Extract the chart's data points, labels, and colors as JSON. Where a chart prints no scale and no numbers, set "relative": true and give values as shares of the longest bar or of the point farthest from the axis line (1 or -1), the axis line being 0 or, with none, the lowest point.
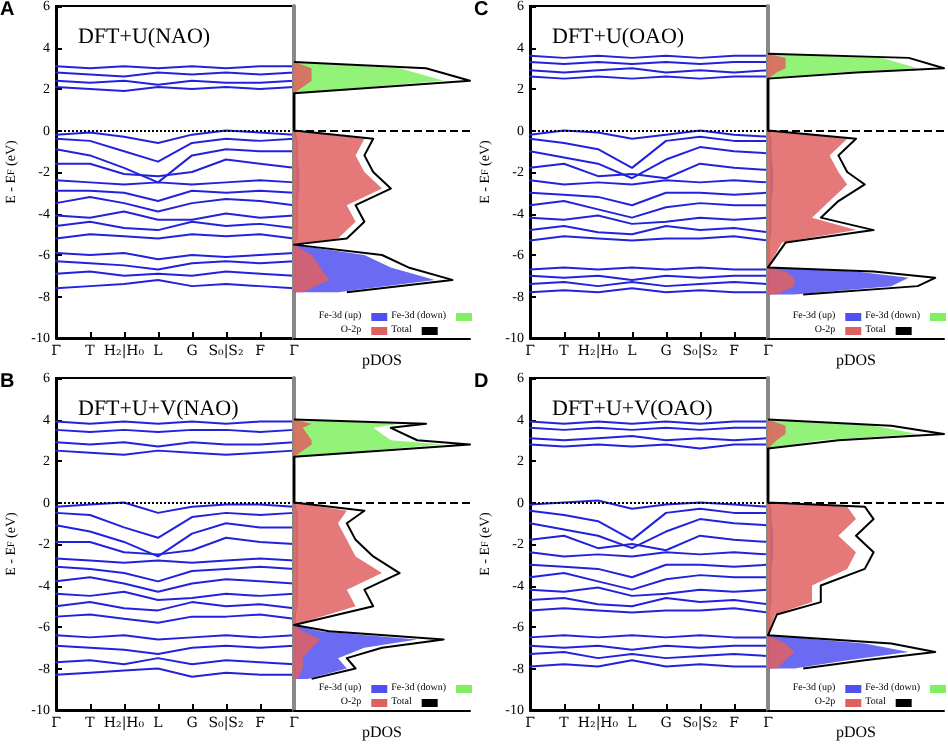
{
  "chart_data": [
    {
      "type": "line",
      "title": "DFT+U(NAO)",
      "ylabel": "E - E$_{F}$ (eV)",
      "annotations": [
        "A"
      ],
      "marker": "none",
      "line_style": "solid",
      "categories": [
        "Γ",
        "T",
        "H₂|H₀",
        "L",
        "G",
        "S₀|S₂",
        "F",
        "Γ"
      ],
      "ylim": [
        -10,
        6
      ],
      "yticks": [
        -10,
        -8,
        -6,
        -4,
        -2,
        0,
        2,
        4,
        6
      ],
      "ref_lines": [
        {
          "axis": "y",
          "value": 0,
          "line_style": "dotted",
          "color": "#000000"
        }
      ],
      "series": [
        {
          "color": "#2222dd",
          "values": [
            3.1,
            3.0,
            3.1,
            3.0,
            3.1,
            3.0,
            3.1,
            3.1
          ]
        },
        {
          "color": "#2222dd",
          "values": [
            2.8,
            2.7,
            2.6,
            2.8,
            2.7,
            2.8,
            2.7,
            2.8
          ]
        },
        {
          "color": "#2222dd",
          "values": [
            2.4,
            2.3,
            2.4,
            2.2,
            2.4,
            2.3,
            2.3,
            2.4
          ]
        },
        {
          "color": "#2222dd",
          "values": [
            2.1,
            2.0,
            1.9,
            2.1,
            2.0,
            2.1,
            2.0,
            2.1
          ]
        },
        {
          "color": "#2222dd",
          "values": [
            -0.2,
            -0.1,
            -0.3,
            -0.6,
            -0.2,
            0,
            -0.1,
            -0.2
          ]
        },
        {
          "color": "#2222dd",
          "values": [
            -0.4,
            -0.5,
            -1.0,
            -1.5,
            -0.6,
            -0.4,
            -0.5,
            -0.4
          ]
        },
        {
          "color": "#2222dd",
          "values": [
            -0.9,
            -1.2,
            -1.8,
            -2.5,
            -1.2,
            -0.9,
            -1.0,
            -1.0
          ]
        },
        {
          "color": "#2222dd",
          "values": [
            -1.6,
            -1.6,
            -2.1,
            -2.2,
            -2.0,
            -1.4,
            -1.6,
            -1.8
          ]
        },
        {
          "color": "#2222dd",
          "values": [
            -2.4,
            -2.5,
            -2.6,
            -2.5,
            -2.6,
            -2.5,
            -2.4,
            -2.5
          ]
        },
        {
          "color": "#2222dd",
          "values": [
            -2.9,
            -2.9,
            -3.0,
            -3.4,
            -2.9,
            -3.0,
            -2.9,
            -3.0
          ]
        },
        {
          "color": "#2222dd",
          "values": [
            -3.5,
            -3.2,
            -3.5,
            -3.9,
            -3.5,
            -3.3,
            -3.4,
            -3.6
          ]
        },
        {
          "color": "#2222dd",
          "values": [
            -4.1,
            -4.2,
            -3.9,
            -4.3,
            -4.3,
            -4.0,
            -4.2,
            -4.1
          ]
        },
        {
          "color": "#2222dd",
          "values": [
            -4.6,
            -4.4,
            -4.7,
            -4.8,
            -4.4,
            -4.6,
            -4.5,
            -4.7
          ]
        },
        {
          "color": "#2222dd",
          "values": [
            -5.2,
            -5.0,
            -5.1,
            -5.2,
            -5.0,
            -5.1,
            -5.0,
            -5.2
          ]
        },
        {
          "color": "#2222dd",
          "values": [
            -5.9,
            -6.0,
            -5.9,
            -6.2,
            -6.0,
            -6.1,
            -6.0,
            -5.9
          ]
        },
        {
          "color": "#2222dd",
          "values": [
            -6.3,
            -6.4,
            -6.5,
            -6.7,
            -6.4,
            -6.3,
            -6.4,
            -6.3
          ]
        },
        {
          "color": "#2222dd",
          "values": [
            -6.9,
            -6.8,
            -7.0,
            -6.9,
            -7.0,
            -6.8,
            -6.9,
            -7.0
          ]
        },
        {
          "color": "#2222dd",
          "values": [
            -7.6,
            -7.5,
            -7.4,
            -7.2,
            -7.5,
            -7.4,
            -7.5,
            -7.6
          ]
        }
      ]
    },
    {
      "type": "area",
      "orientation": "horizontal",
      "relative": true,
      "xlabel": "pDOS",
      "tick_labels": false,
      "legend": "bottom right",
      "ylim": [
        -10,
        6
      ],
      "x": [
        -7.8,
        -7.2,
        -6.6,
        -6.0,
        -5.5,
        -5.2,
        -4.4,
        -3.6,
        -2.8,
        -2.0,
        -1.2,
        -0.4,
        0,
        1.8,
        2.4,
        3.0,
        3.3
      ],
      "ref_lines": [
        {
          "axis": "y",
          "value": 0,
          "line_style": "dashed",
          "color": "#000000"
        }
      ],
      "series": [
        {
          "name": "Fe-3d (up)",
          "color": "#5050f0",
          "values": [
            0.25,
            0.8,
            0.55,
            0.4,
            0,
            0.02,
            0.02,
            0.02,
            0.03,
            0.03,
            0.02,
            0.02,
            0,
            0,
            0,
            0,
            0
          ]
        },
        {
          "name": "Fe-3d (down)",
          "color": "#80f060",
          "values": [
            0,
            0,
            0,
            0,
            0,
            0.01,
            0.01,
            0.01,
            0.01,
            0.01,
            0.01,
            0.01,
            0,
            0,
            0.85,
            0.6,
            0
          ]
        },
        {
          "name": "O-2p",
          "color": "#e06060",
          "values": [
            0.05,
            0.2,
            0.15,
            0.1,
            0,
            0.25,
            0.35,
            0.3,
            0.5,
            0.4,
            0.35,
            0.4,
            0,
            0,
            0.1,
            0.1,
            0
          ]
        },
        {
          "name": "Total",
          "type": "line",
          "color": "#000000",
          "values": [
            0.3,
            0.9,
            0.65,
            0.5,
            0,
            0.3,
            0.4,
            0.35,
            0.55,
            0.45,
            0.4,
            0.45,
            0,
            0,
            1,
            0.75,
            0
          ]
        }
      ]
    },
    {
      "type": "line",
      "title": "DFT+U(OAO)",
      "ylabel": "E - E$_{F}$ (eV)",
      "annotations": [
        "C"
      ],
      "marker": "none",
      "line_style": "solid",
      "categories": [
        "Γ",
        "T",
        "H₂|H₀",
        "L",
        "G",
        "S₀|S₂",
        "F",
        "Γ"
      ],
      "ylim": [
        -10,
        6
      ],
      "yticks": [
        -10,
        -8,
        -6,
        -4,
        -2,
        0,
        2,
        4,
        6
      ],
      "ref_lines": [
        {
          "axis": "y",
          "value": 0,
          "line_style": "dotted",
          "color": "#000000"
        }
      ],
      "series": [
        {
          "color": "#2222dd",
          "values": [
            3.6,
            3.5,
            3.6,
            3.5,
            3.6,
            3.5,
            3.6,
            3.6
          ]
        },
        {
          "color": "#2222dd",
          "values": [
            3.3,
            3.2,
            3.3,
            3.2,
            3.3,
            3.2,
            3.3,
            3.3
          ]
        },
        {
          "color": "#2222dd",
          "values": [
            2.9,
            2.8,
            2.9,
            3.0,
            2.8,
            2.9,
            2.8,
            2.9
          ]
        },
        {
          "color": "#2222dd",
          "values": [
            2.6,
            2.5,
            2.6,
            2.5,
            2.6,
            2.5,
            2.6,
            2.6
          ]
        },
        {
          "color": "#2222dd",
          "values": [
            -0.2,
            0,
            -0.1,
            -0.4,
            -0.2,
            0,
            -0.2,
            -0.3
          ]
        },
        {
          "color": "#2222dd",
          "values": [
            -0.4,
            -0.6,
            -0.9,
            -1.8,
            -0.5,
            -0.3,
            -0.5,
            -0.5
          ]
        },
        {
          "color": "#2222dd",
          "values": [
            -1.0,
            -1.3,
            -1.6,
            -2.3,
            -1.4,
            -0.8,
            -1.0,
            -1.1
          ]
        },
        {
          "color": "#2222dd",
          "values": [
            -1.8,
            -1.6,
            -2.2,
            -2.1,
            -2.3,
            -1.6,
            -1.8,
            -1.9
          ]
        },
        {
          "color": "#2222dd",
          "values": [
            -2.4,
            -2.6,
            -2.5,
            -2.6,
            -2.4,
            -2.5,
            -2.4,
            -2.5
          ]
        },
        {
          "color": "#2222dd",
          "values": [
            -3.0,
            -3.1,
            -3.2,
            -3.6,
            -3.0,
            -3.0,
            -3.1,
            -3.0
          ]
        },
        {
          "color": "#2222dd",
          "values": [
            -3.6,
            -3.4,
            -3.8,
            -4.2,
            -3.7,
            -3.5,
            -3.6,
            -3.6
          ]
        },
        {
          "color": "#2222dd",
          "values": [
            -4.2,
            -4.3,
            -4.1,
            -4.5,
            -4.4,
            -4.2,
            -4.3,
            -4.2
          ]
        },
        {
          "color": "#2222dd",
          "values": [
            -4.8,
            -4.6,
            -4.9,
            -5.0,
            -4.6,
            -4.8,
            -4.7,
            -4.9
          ]
        },
        {
          "color": "#2222dd",
          "values": [
            -5.3,
            -5.1,
            -5.2,
            -5.3,
            -5.2,
            -5.2,
            -5.1,
            -5.3
          ]
        },
        {
          "color": "#2222dd",
          "values": [
            -6.7,
            -6.6,
            -6.7,
            -6.6,
            -6.7,
            -6.6,
            -6.7,
            -6.7
          ]
        },
        {
          "color": "#2222dd",
          "values": [
            -7.0,
            -7.1,
            -7.0,
            -7.2,
            -7.0,
            -7.1,
            -7.0,
            -7.0
          ]
        },
        {
          "color": "#2222dd",
          "values": [
            -7.4,
            -7.3,
            -7.5,
            -7.3,
            -7.5,
            -7.4,
            -7.3,
            -7.4
          ]
        },
        {
          "color": "#2222dd",
          "values": [
            -7.8,
            -7.7,
            -7.8,
            -7.6,
            -7.8,
            -7.7,
            -7.8,
            -7.8
          ]
        }
      ]
    },
    {
      "type": "area",
      "orientation": "horizontal",
      "relative": true,
      "xlabel": "pDOS",
      "tick_labels": false,
      "legend": "bottom right",
      "ylim": [
        -10,
        6
      ],
      "x": [
        -7.9,
        -7.5,
        -7.1,
        -6.8,
        -6.6,
        -5.4,
        -4.8,
        -4.2,
        -3.4,
        -2.6,
        -2.0,
        -1.2,
        -0.4,
        0,
        2.5,
        2.8,
        3.0,
        3.5,
        3.7
      ],
      "ref_lines": [
        {
          "axis": "y",
          "value": 0,
          "line_style": "dashed",
          "color": "#000000"
        }
      ],
      "series": [
        {
          "name": "Fe-3d (up)",
          "color": "#5050f0",
          "values": [
            0.15,
            0.7,
            0.8,
            0.5,
            0,
            0.01,
            0.02,
            0.02,
            0.02,
            0.03,
            0.03,
            0.02,
            0.02,
            0,
            0,
            0,
            0,
            0,
            0
          ]
        },
        {
          "name": "Fe-3d (down)",
          "color": "#80f060",
          "values": [
            0,
            0,
            0,
            0,
            0,
            0.01,
            0.01,
            0.01,
            0.01,
            0.01,
            0.01,
            0.01,
            0.01,
            0,
            0,
            0.4,
            0.85,
            0.65,
            0
          ]
        },
        {
          "name": "O-2p",
          "color": "#e06060",
          "values": [
            0.05,
            0.15,
            0.15,
            0.1,
            0,
            0.08,
            0.5,
            0.25,
            0.35,
            0.45,
            0.4,
            0.35,
            0.45,
            0,
            0,
            0.05,
            0.1,
            0.1,
            0
          ]
        },
        {
          "name": "Total",
          "type": "line",
          "color": "#000000",
          "values": [
            0.2,
            0.85,
            0.95,
            0.6,
            0,
            0.1,
            0.6,
            0.3,
            0.4,
            0.55,
            0.45,
            0.4,
            0.5,
            0,
            0,
            0.5,
            1,
            0.8,
            0
          ]
        }
      ]
    },
    {
      "type": "line",
      "title": "DFT+U+V(NAO)",
      "ylabel": "E - E$_{F}$ (eV)",
      "annotations": [
        "B"
      ],
      "marker": "none",
      "line_style": "solid",
      "categories": [
        "Γ",
        "T",
        "H₂|H₀",
        "L",
        "G",
        "S₀|S₂",
        "F",
        "Γ"
      ],
      "ylim": [
        -10,
        6
      ],
      "yticks": [
        -10,
        -8,
        -6,
        -4,
        -2,
        0,
        2,
        4,
        6
      ],
      "ref_lines": [
        {
          "axis": "y",
          "value": 0,
          "line_style": "dotted",
          "color": "#000000"
        }
      ],
      "series": [
        {
          "color": "#2222dd",
          "values": [
            3.9,
            3.8,
            3.9,
            3.8,
            3.9,
            3.8,
            3.9,
            3.9
          ]
        },
        {
          "color": "#2222dd",
          "values": [
            3.5,
            3.4,
            3.5,
            3.4,
            3.5,
            3.5,
            3.4,
            3.5
          ]
        },
        {
          "color": "#2222dd",
          "values": [
            2.9,
            2.8,
            2.9,
            2.7,
            2.9,
            2.8,
            2.8,
            2.9
          ]
        },
        {
          "color": "#2222dd",
          "values": [
            2.5,
            2.4,
            2.3,
            2.5,
            2.4,
            2.3,
            2.4,
            2.5
          ]
        },
        {
          "color": "#2222dd",
          "values": [
            -0.2,
            -0.1,
            0,
            -0.5,
            -0.2,
            -0.1,
            -0.1,
            -0.2
          ]
        },
        {
          "color": "#2222dd",
          "values": [
            -0.5,
            -0.6,
            -1.2,
            -1.7,
            -0.7,
            -0.5,
            -0.6,
            -0.5
          ]
        },
        {
          "color": "#2222dd",
          "values": [
            -1.1,
            -1.4,
            -1.9,
            -2.6,
            -1.5,
            -1.0,
            -1.2,
            -1.2
          ]
        },
        {
          "color": "#2222dd",
          "values": [
            -1.9,
            -1.9,
            -2.4,
            -2.5,
            -2.3,
            -1.7,
            -1.9,
            -2.0
          ]
        },
        {
          "color": "#2222dd",
          "values": [
            -2.7,
            -2.8,
            -2.9,
            -2.8,
            -2.9,
            -2.8,
            -2.7,
            -2.8
          ]
        },
        {
          "color": "#2222dd",
          "values": [
            -3.1,
            -3.2,
            -3.4,
            -3.8,
            -3.3,
            -3.2,
            -3.1,
            -3.2
          ]
        },
        {
          "color": "#2222dd",
          "values": [
            -3.8,
            -3.6,
            -3.9,
            -4.3,
            -3.9,
            -3.7,
            -3.8,
            -3.9
          ]
        },
        {
          "color": "#2222dd",
          "values": [
            -4.4,
            -4.5,
            -4.3,
            -4.7,
            -4.6,
            -4.4,
            -4.5,
            -4.4
          ]
        },
        {
          "color": "#2222dd",
          "values": [
            -5.0,
            -4.8,
            -5.1,
            -5.2,
            -4.8,
            -5.0,
            -4.9,
            -5.1
          ]
        },
        {
          "color": "#2222dd",
          "values": [
            -5.5,
            -5.4,
            -5.6,
            -5.8,
            -5.5,
            -5.5,
            -5.4,
            -5.6
          ]
        },
        {
          "color": "#2222dd",
          "values": [
            -6.4,
            -6.5,
            -6.4,
            -6.6,
            -6.5,
            -6.4,
            -6.5,
            -6.4
          ]
        },
        {
          "color": "#2222dd",
          "values": [
            -6.9,
            -7.0,
            -7.1,
            -7.3,
            -7.0,
            -6.9,
            -7.0,
            -6.9
          ]
        },
        {
          "color": "#2222dd",
          "values": [
            -7.7,
            -7.6,
            -7.8,
            -7.5,
            -7.8,
            -7.6,
            -7.7,
            -7.8
          ]
        },
        {
          "color": "#2222dd",
          "values": [
            -8.3,
            -8.2,
            -8.1,
            -8.0,
            -8.4,
            -8.2,
            -8.3,
            -8.3
          ]
        }
      ]
    },
    {
      "type": "area",
      "orientation": "horizontal",
      "relative": true,
      "xlabel": "pDOS",
      "tick_labels": false,
      "legend": "bottom right",
      "ylim": [
        -10,
        6
      ],
      "x": [
        -8.5,
        -8.0,
        -7.5,
        -7.0,
        -6.6,
        -6.2,
        -5.9,
        -5.0,
        -4.2,
        -3.4,
        -2.6,
        -1.8,
        -1.0,
        -0.4,
        0,
        2.2,
        2.8,
        3.0,
        3.6,
        3.8,
        4.0
      ],
      "ref_lines": [
        {
          "axis": "y",
          "value": 0,
          "line_style": "dashed",
          "color": "#000000"
        }
      ],
      "series": [
        {
          "name": "Fe-3d (up)",
          "color": "#5050f0",
          "values": [
            0.08,
            0.3,
            0.25,
            0.4,
            0.7,
            0.15,
            0,
            0.02,
            0.02,
            0.02,
            0.02,
            0.02,
            0.02,
            0.02,
            0,
            0,
            0,
            0,
            0,
            0,
            0
          ]
        },
        {
          "name": "Fe-3d (down)",
          "color": "#80f060",
          "values": [
            0,
            0,
            0,
            0,
            0,
            0,
            0,
            0.01,
            0.01,
            0.01,
            0.01,
            0.01,
            0.01,
            0.01,
            0,
            0,
            0.85,
            0.55,
            0.45,
            0.6,
            0
          ]
        },
        {
          "name": "O-2p",
          "color": "#e06060",
          "values": [
            0.02,
            0.05,
            0.05,
            0.1,
            0.15,
            0.05,
            0,
            0.35,
            0.3,
            0.5,
            0.35,
            0.3,
            0.25,
            0.3,
            0,
            0,
            0.1,
            0.1,
            0.05,
            0.1,
            0
          ]
        },
        {
          "name": "Total",
          "type": "line",
          "color": "#000000",
          "values": [
            0.1,
            0.35,
            0.3,
            0.5,
            0.85,
            0.2,
            0,
            0.45,
            0.4,
            0.6,
            0.45,
            0.35,
            0.3,
            0.4,
            0,
            0,
            1,
            0.7,
            0.55,
            0.75,
            0
          ]
        }
      ]
    },
    {
      "type": "line",
      "title": "DFT+U+V(OAO)",
      "ylabel": "E - E$_{F}$ (eV)",
      "annotations": [
        "D"
      ],
      "marker": "none",
      "line_style": "solid",
      "categories": [
        "Γ",
        "T",
        "H₂|H₀",
        "L",
        "G",
        "S₀|S₂",
        "F",
        "Γ"
      ],
      "ylim": [
        -10,
        6
      ],
      "yticks": [
        -10,
        -8,
        -6,
        -4,
        -2,
        0,
        2,
        4,
        6
      ],
      "ref_lines": [
        {
          "axis": "y",
          "value": 0,
          "line_style": "dotted",
          "color": "#000000"
        }
      ],
      "series": [
        {
          "color": "#2222dd",
          "values": [
            3.9,
            3.8,
            3.9,
            3.8,
            3.9,
            3.8,
            3.9,
            3.9
          ]
        },
        {
          "color": "#2222dd",
          "values": [
            3.6,
            3.5,
            3.6,
            3.5,
            3.6,
            3.5,
            3.6,
            3.6
          ]
        },
        {
          "color": "#2222dd",
          "values": [
            3.1,
            3.0,
            3.1,
            3.2,
            3.0,
            3.1,
            3.0,
            3.1
          ]
        },
        {
          "color": "#2222dd",
          "values": [
            2.8,
            2.7,
            2.8,
            2.7,
            2.8,
            2.6,
            2.8,
            2.8
          ]
        },
        {
          "color": "#2222dd",
          "values": [
            -0.1,
            0,
            0.1,
            -0.3,
            -0.1,
            0,
            -0.1,
            -0.2
          ]
        },
        {
          "color": "#2222dd",
          "values": [
            -0.4,
            -0.6,
            -0.9,
            -1.8,
            -0.5,
            -0.3,
            -0.5,
            -0.5
          ]
        },
        {
          "color": "#2222dd",
          "values": [
            -1.0,
            -1.3,
            -1.6,
            -2.2,
            -1.4,
            -0.8,
            -1.0,
            -1.1
          ]
        },
        {
          "color": "#2222dd",
          "values": [
            -1.8,
            -1.6,
            -2.2,
            -2.0,
            -2.3,
            -1.6,
            -1.8,
            -1.9
          ]
        },
        {
          "color": "#2222dd",
          "values": [
            -2.4,
            -2.6,
            -2.5,
            -2.6,
            -2.4,
            -2.5,
            -2.4,
            -2.5
          ]
        },
        {
          "color": "#2222dd",
          "values": [
            -3.0,
            -3.1,
            -3.2,
            -3.6,
            -3.0,
            -3.0,
            -3.1,
            -3.0
          ]
        },
        {
          "color": "#2222dd",
          "values": [
            -3.6,
            -3.4,
            -3.8,
            -4.2,
            -3.7,
            -3.5,
            -3.6,
            -3.6
          ]
        },
        {
          "color": "#2222dd",
          "values": [
            -4.2,
            -4.3,
            -4.1,
            -4.5,
            -4.4,
            -4.2,
            -4.3,
            -4.2
          ]
        },
        {
          "color": "#2222dd",
          "values": [
            -4.7,
            -4.6,
            -4.9,
            -5.0,
            -4.6,
            -4.8,
            -4.7,
            -4.9
          ]
        },
        {
          "color": "#2222dd",
          "values": [
            -5.2,
            -5.1,
            -5.2,
            -5.3,
            -5.2,
            -5.2,
            -5.1,
            -5.3
          ]
        },
        {
          "color": "#2222dd",
          "values": [
            -6.5,
            -6.4,
            -6.5,
            -6.4,
            -6.5,
            -6.4,
            -6.5,
            -6.5
          ]
        },
        {
          "color": "#2222dd",
          "values": [
            -6.9,
            -7.0,
            -6.9,
            -7.1,
            -6.9,
            -7.0,
            -6.9,
            -6.9
          ]
        },
        {
          "color": "#2222dd",
          "values": [
            -7.3,
            -7.2,
            -7.5,
            -7.3,
            -7.5,
            -7.4,
            -7.3,
            -7.4
          ]
        },
        {
          "color": "#2222dd",
          "values": [
            -7.9,
            -7.8,
            -7.9,
            -7.6,
            -7.9,
            -7.8,
            -7.9,
            -7.9
          ]
        }
      ]
    },
    {
      "type": "area",
      "orientation": "horizontal",
      "relative": true,
      "xlabel": "pDOS",
      "tick_labels": false,
      "legend": "bottom right",
      "ylim": [
        -10,
        6
      ],
      "x": [
        -8.0,
        -7.6,
        -7.2,
        -6.8,
        -6.4,
        -5.4,
        -4.8,
        -4.0,
        -3.2,
        -2.4,
        -1.6,
        -0.8,
        -0.2,
        0,
        2.6,
        3.0,
        3.3,
        3.7,
        4.0
      ],
      "ref_lines": [
        {
          "axis": "y",
          "value": 0,
          "line_style": "dashed",
          "color": "#000000"
        }
      ],
      "series": [
        {
          "name": "Fe-3d (up)",
          "color": "#5050f0",
          "values": [
            0.15,
            0.45,
            0.8,
            0.55,
            0,
            0.01,
            0.02,
            0.02,
            0.02,
            0.03,
            0.03,
            0.02,
            0.02,
            0,
            0,
            0,
            0,
            0,
            0
          ]
        },
        {
          "name": "Fe-3d (down)",
          "color": "#80f060",
          "values": [
            0,
            0,
            0,
            0,
            0,
            0.01,
            0.01,
            0.01,
            0.01,
            0.01,
            0.01,
            0.01,
            0.01,
            0,
            0,
            0.3,
            0.85,
            0.6,
            0
          ]
        },
        {
          "name": "O-2p",
          "color": "#e06060",
          "values": [
            0.05,
            0.1,
            0.15,
            0.1,
            0,
            0.04,
            0.25,
            0.25,
            0.45,
            0.5,
            0.4,
            0.5,
            0.45,
            0,
            0,
            0.05,
            0.1,
            0.1,
            0
          ]
        },
        {
          "name": "Total",
          "type": "line",
          "color": "#000000",
          "values": [
            0.2,
            0.55,
            0.95,
            0.7,
            0,
            0.05,
            0.3,
            0.3,
            0.55,
            0.6,
            0.5,
            0.6,
            0.55,
            0,
            0,
            0.4,
            1,
            0.7,
            0
          ]
        }
      ]
    }
  ]
}
